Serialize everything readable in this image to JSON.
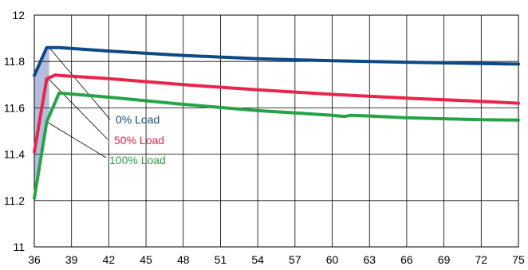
{
  "chart_data": {
    "type": "line",
    "title": "",
    "xlabel": "",
    "ylabel": "",
    "xlim": [
      36,
      75
    ],
    "ylim": [
      11,
      12
    ],
    "x_ticks": [
      36,
      39,
      42,
      45,
      48,
      51,
      54,
      57,
      60,
      63,
      66,
      69,
      72,
      75
    ],
    "x_tick_labels": [
      "36",
      "39",
      "42",
      "45",
      "48",
      "51",
      "54",
      "57",
      "60",
      "63",
      "66",
      "69",
      "72",
      "75"
    ],
    "y_ticks": [
      11,
      11.2,
      11.4,
      11.6,
      11.8,
      12
    ],
    "y_tick_labels": [
      "11",
      "11.2",
      "11.4",
      "11.6",
      "11.8",
      "12"
    ],
    "grid": true,
    "shaded_region": {
      "x_start": 36,
      "x_end": 37.2,
      "color": "#b3bedf"
    },
    "series": [
      {
        "name": "0% Load",
        "color": "#0d4a85",
        "x": [
          36,
          37,
          38,
          42,
          48,
          54,
          60,
          66,
          72,
          75
        ],
        "y": [
          11.74,
          11.86,
          11.86,
          11.845,
          11.826,
          11.812,
          11.803,
          11.797,
          11.791,
          11.789
        ]
      },
      {
        "name": "50% Load",
        "color": "#e8264c",
        "x": [
          36,
          37,
          37.7,
          38,
          42,
          48,
          54,
          60,
          66,
          72,
          75
        ],
        "y": [
          11.41,
          11.725,
          11.742,
          11.74,
          11.726,
          11.7,
          11.678,
          11.658,
          11.642,
          11.628,
          11.62
        ]
      },
      {
        "name": "100% Load",
        "color": "#27a347",
        "x": [
          36,
          37,
          38,
          42,
          48,
          54,
          60,
          61,
          61.5,
          63,
          66,
          69,
          72,
          75
        ],
        "y": [
          11.21,
          11.54,
          11.664,
          11.646,
          11.615,
          11.588,
          11.568,
          11.563,
          11.568,
          11.565,
          11.557,
          11.553,
          11.549,
          11.547
        ]
      }
    ],
    "legend": [
      {
        "label": "0% Load",
        "color": "#0d4a85",
        "anchor_x": 37.2
      },
      {
        "label": "50% Load",
        "color": "#e8264c",
        "anchor_x": 37.1
      },
      {
        "label": "100% Load",
        "color": "#27a347",
        "anchor_x": 37.0
      }
    ]
  }
}
